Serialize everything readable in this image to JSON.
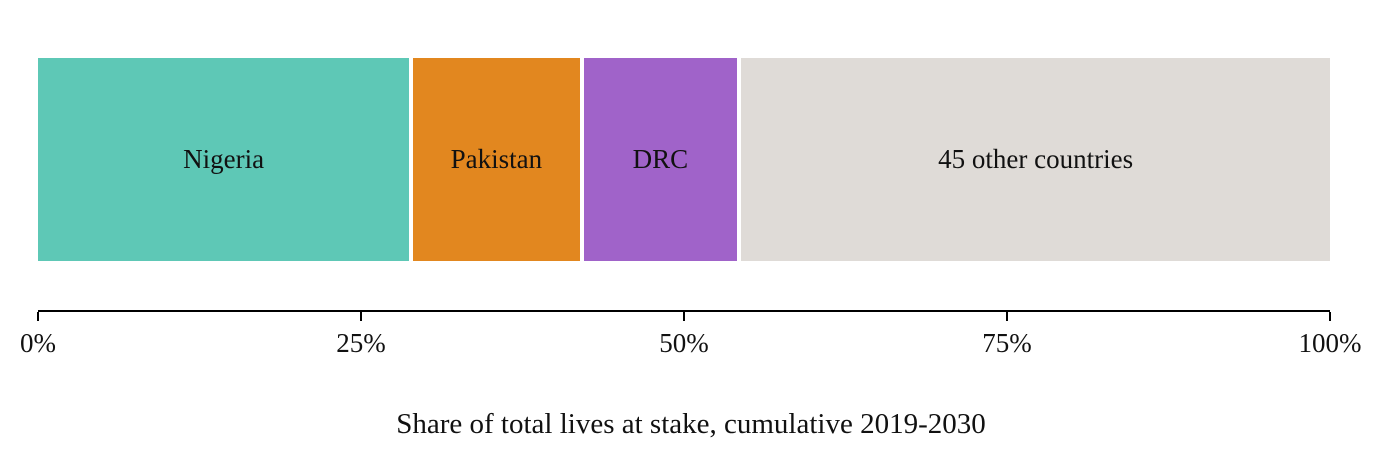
{
  "chart_data": {
    "type": "bar",
    "variant": "horizontal-stacked",
    "title": "Share of total lives at stake, cumulative 2019-2030",
    "xlabel": "",
    "ylabel": "",
    "xlim": [
      0,
      100
    ],
    "grid": false,
    "legend_position": "none",
    "segments": [
      {
        "label": "Nigeria",
        "value": 29,
        "color": "#5ec8b6"
      },
      {
        "label": "Pakistan",
        "value": 13,
        "color": "#e2871f"
      },
      {
        "label": "DRC",
        "value": 12,
        "color": "#a063c9"
      },
      {
        "label": "45 other countries",
        "value": 46,
        "color": "#dfdbd7"
      }
    ],
    "tick_labels": [
      "0%",
      "25%",
      "50%",
      "75%",
      "100%"
    ],
    "tick_values": [
      0,
      25,
      50,
      75,
      100
    ]
  }
}
